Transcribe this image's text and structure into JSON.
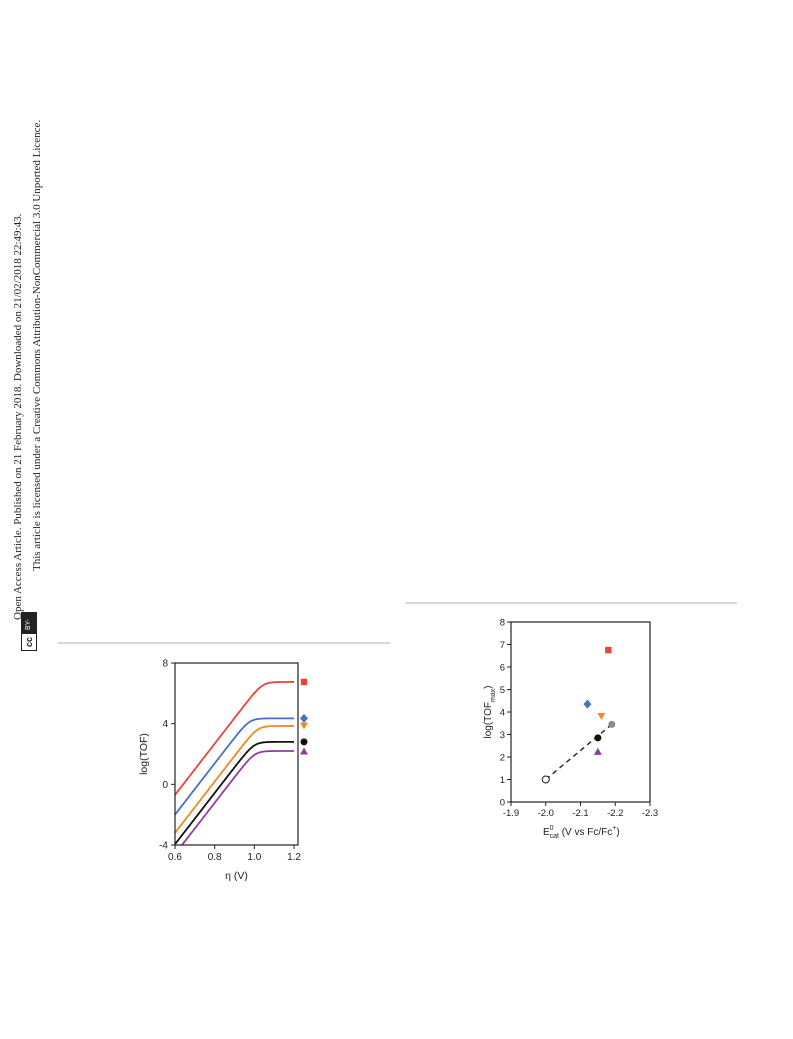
{
  "sidebar": {
    "line1": "Open Access Article. Published on 21 February 2018. Downloaded on 21/02/2018 22:49:43.",
    "line2": "This article is licensed under a Creative Commons Attribution-NonCommercial 3.0 Unported Licence.",
    "badge_cc": "cc",
    "badge_by": "BY-NC"
  },
  "chart_data": [
    {
      "type": "line",
      "xlabel": "η (V)",
      "ylabel": "log(TOF)",
      "xlim": [
        0.6,
        1.22
      ],
      "ylim": [
        -4,
        8
      ],
      "xticks": [
        "0.6",
        "0.8",
        "1.0",
        "1.2"
      ],
      "yticks": [
        "-4",
        "0",
        "4",
        "8"
      ],
      "series": [
        {
          "color": "#e8463a",
          "marker": "square",
          "plateau": 6.75,
          "slope": 16.9,
          "onset": 0.6,
          "start": -0.7
        },
        {
          "color": "#4a6fc9",
          "marker": "diamond",
          "plateau": 4.35,
          "slope": 16.9,
          "onset": 0.6,
          "start": -2.0
        },
        {
          "color": "#f08a24",
          "marker": "triangle-down",
          "plateau": 3.85,
          "slope": 16.9,
          "onset": 0.6,
          "start": -3.2
        },
        {
          "color": "#111111",
          "marker": "circle",
          "plateau": 2.8,
          "slope": 16.9,
          "onset": 0.6,
          "start": -3.95
        },
        {
          "color": "#8e3ea4",
          "marker": "triangle-up",
          "plateau": 2.2,
          "slope": 16.9,
          "onset": 0.6,
          "start": -4.6
        }
      ]
    },
    {
      "type": "scatter",
      "xlabel_main": "E",
      "xlabel_sup": "0",
      "xlabel_sub": "cat",
      "xlabel_rest": " (V vs Fc/Fc",
      "xlabel_sup2": "+",
      "xlabel_end": ")",
      "ylabel_main": "log(TOF",
      "ylabel_sub": "max",
      "ylabel_end": ")",
      "xlim": [
        -1.9,
        -2.3
      ],
      "ylim": [
        0,
        8
      ],
      "xticks": [
        "-1.9",
        "-2.0",
        "-2.1",
        "-2.2",
        "-2.3"
      ],
      "yticks": [
        "0",
        "1",
        "2",
        "3",
        "4",
        "5",
        "6",
        "7",
        "8"
      ],
      "points": [
        {
          "x": -2.18,
          "y": 6.75,
          "color": "#e8463a",
          "marker": "square"
        },
        {
          "x": -2.12,
          "y": 4.35,
          "color": "#4a6fc9",
          "marker": "diamond"
        },
        {
          "x": -2.16,
          "y": 3.8,
          "color": "#f08a24",
          "marker": "triangle-down"
        },
        {
          "x": -2.19,
          "y": 3.45,
          "color": "#8a8a8a",
          "marker": "circle"
        },
        {
          "x": -2.15,
          "y": 2.85,
          "color": "#111111",
          "marker": "circle"
        },
        {
          "x": -2.15,
          "y": 2.25,
          "color": "#8e3ea4",
          "marker": "triangle-up"
        },
        {
          "x": -2.0,
          "y": 1.0,
          "color": "#ffffff",
          "marker": "circle-open"
        }
      ],
      "fit_line": {
        "x": [
          -2.0,
          -2.19
        ],
        "y": [
          1.0,
          3.45
        ],
        "style": "dashed"
      }
    }
  ]
}
